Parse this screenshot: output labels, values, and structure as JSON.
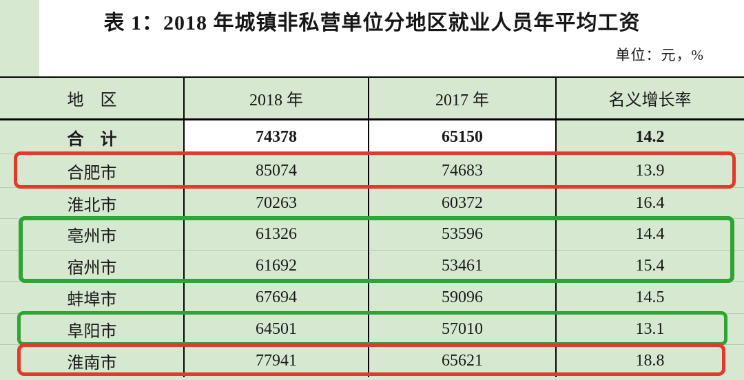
{
  "title": "表 1：2018 年城镇非私营单位分地区就业人员年平均工资",
  "unit_label": "单位：元，%",
  "table": {
    "headers": {
      "region": "地　区",
      "y2018": "2018 年",
      "y2017": "2017 年",
      "growth": "名义增长率"
    },
    "rows": [
      {
        "region": "合　计",
        "v2018": "74378",
        "v2017": "65150",
        "growth": "14.2"
      },
      {
        "region": "合肥市",
        "v2018": "85074",
        "v2017": "74683",
        "growth": "13.9"
      },
      {
        "region": "淮北市",
        "v2018": "70263",
        "v2017": "60372",
        "growth": "16.4"
      },
      {
        "region": "亳州市",
        "v2018": "61326",
        "v2017": "53596",
        "growth": "14.4"
      },
      {
        "region": "宿州市",
        "v2018": "61692",
        "v2017": "53461",
        "growth": "15.4"
      },
      {
        "region": "蚌埠市",
        "v2018": "67694",
        "v2017": "59096",
        "growth": "14.5"
      },
      {
        "region": "阜阳市",
        "v2018": "64501",
        "v2017": "57010",
        "growth": "13.1"
      },
      {
        "region": "淮南市",
        "v2018": "77941",
        "v2017": "65621",
        "growth": "18.8"
      }
    ]
  },
  "annotations": [
    {
      "shape": "red-box",
      "rows": [
        "合肥市"
      ]
    },
    {
      "shape": "green-box",
      "rows": [
        "亳州市",
        "宿州市"
      ]
    },
    {
      "shape": "green-box",
      "rows": [
        "阜阳市"
      ]
    },
    {
      "shape": "red-box",
      "rows": [
        "淮南市"
      ]
    }
  ],
  "colors": {
    "page_background_green": "#d6e8d0",
    "table_rule_black": "#050505",
    "highlight_red": "#e2392b",
    "highlight_green": "#2ea434",
    "total_row_cell_white": "#ffffff"
  }
}
